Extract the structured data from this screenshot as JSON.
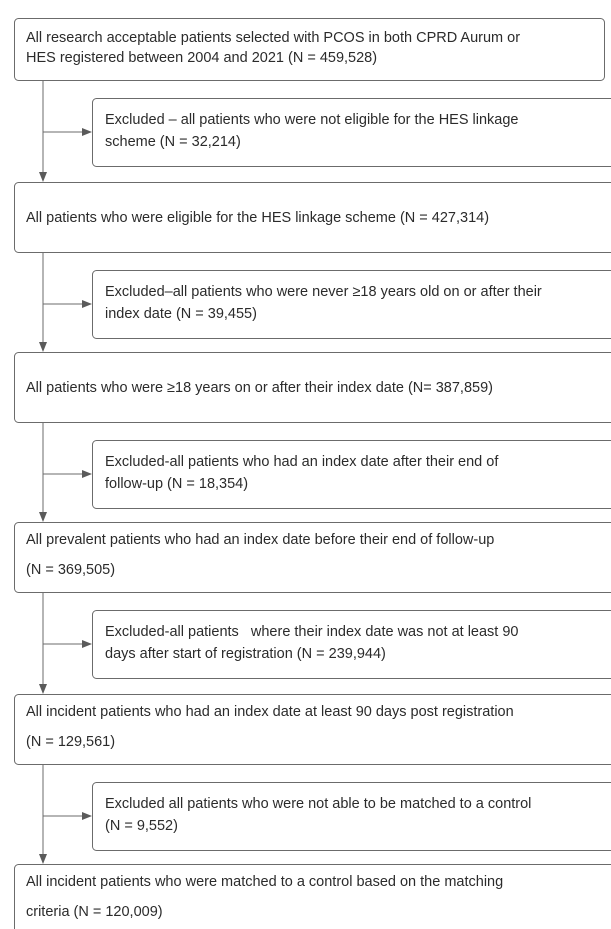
{
  "main_boxes": [
    [
      "All research acceptable patients selected with PCOS in both CPRD Aurum or",
      "HES registered between 2004 and 2021 (N = 459,528)"
    ],
    [
      "All patients who were eligible for the HES linkage scheme (N = 427,314)"
    ],
    [
      "All patients who were ≥18 years on or after their index date (N= 387,859)"
    ],
    [
      "All prevalent patients who had an index date before their end of follow-up",
      "(N = 369,505)"
    ],
    [
      "All incident patients who had an index date at least 90 days post registration",
      "(N = 129,561)"
    ],
    [
      "All incident patients who were matched to a control based on the matching",
      "criteria (N = 120,009)"
    ]
  ],
  "excluded_boxes": [
    [
      "Excluded – all patients who were not eligible for the HES linkage",
      "scheme (N = 32,214)"
    ],
    [
      "Excluded–all patients who were never ≥18 years old on or after their",
      "index date (N = 39,455)"
    ],
    [
      "Excluded-all patients who had an index date after their end of",
      "follow-up (N = 18,354)"
    ],
    [
      "Excluded-all patients   where their index date was not at least 90",
      "days after start of registration (N = 239,944)"
    ],
    [
      "Excluded all patients who were not able to be matched to a control",
      "(N = 9,552)"
    ]
  ]
}
